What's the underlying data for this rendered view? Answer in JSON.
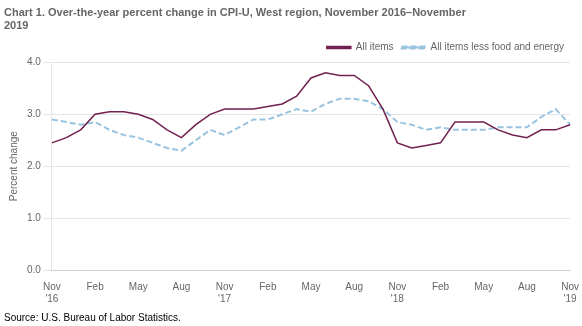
{
  "chart_data": {
    "type": "line",
    "title": [
      "Chart 1. Over-the-year percent change in CPI-U, West region, November 2016–November",
      "2019"
    ],
    "ylabel": "Percent change",
    "source": "Source: U.S. Bureau of Labor Statistics.",
    "categories": [
      "Nov\n'16",
      null,
      null,
      "Feb",
      null,
      null,
      "May",
      null,
      null,
      "Aug",
      null,
      null,
      "Nov\n'17",
      null,
      null,
      "Feb",
      null,
      null,
      "May",
      null,
      null,
      "Aug",
      null,
      null,
      "Nov\n'18",
      null,
      null,
      "Feb",
      null,
      null,
      "May",
      null,
      null,
      "Aug",
      null,
      null,
      "Nov\n'19"
    ],
    "series": [
      {
        "name": "All items",
        "color": "#722050",
        "line_style": "solid",
        "values": [
          2.45,
          2.55,
          2.7,
          3.0,
          3.05,
          3.05,
          3.0,
          2.9,
          2.7,
          2.55,
          2.8,
          3.0,
          3.1,
          3.1,
          3.1,
          3.15,
          3.2,
          3.35,
          3.7,
          3.8,
          3.75,
          3.75,
          3.55,
          3.1,
          2.45,
          2.35,
          2.4,
          2.45,
          2.85,
          2.85,
          2.85,
          2.7,
          2.6,
          2.55,
          2.7,
          2.7,
          2.8
        ]
      },
      {
        "name": "All items less food and energy",
        "color": "#99c4e0",
        "line_style": "dashed",
        "values": [
          2.9,
          2.85,
          2.8,
          2.85,
          2.7,
          2.6,
          2.55,
          2.45,
          2.35,
          2.3,
          2.5,
          2.7,
          2.6,
          2.75,
          2.9,
          2.9,
          3.0,
          3.1,
          3.05,
          3.2,
          3.3,
          3.3,
          3.25,
          3.1,
          2.85,
          2.8,
          2.7,
          2.75,
          2.7,
          2.7,
          2.7,
          2.75,
          2.75,
          2.75,
          2.95,
          3.1,
          2.8
        ]
      }
    ],
    "ylim": [
      0.0,
      4.0
    ],
    "yticks": [
      {
        "value": 0,
        "label": "0.0"
      },
      {
        "value": 1,
        "label": "1.0"
      },
      {
        "value": 2,
        "label": "2.0"
      },
      {
        "value": 3,
        "label": "3.0"
      },
      {
        "value": 4,
        "label": "4.0"
      }
    ],
    "grid": "y",
    "legend": "upper right"
  }
}
